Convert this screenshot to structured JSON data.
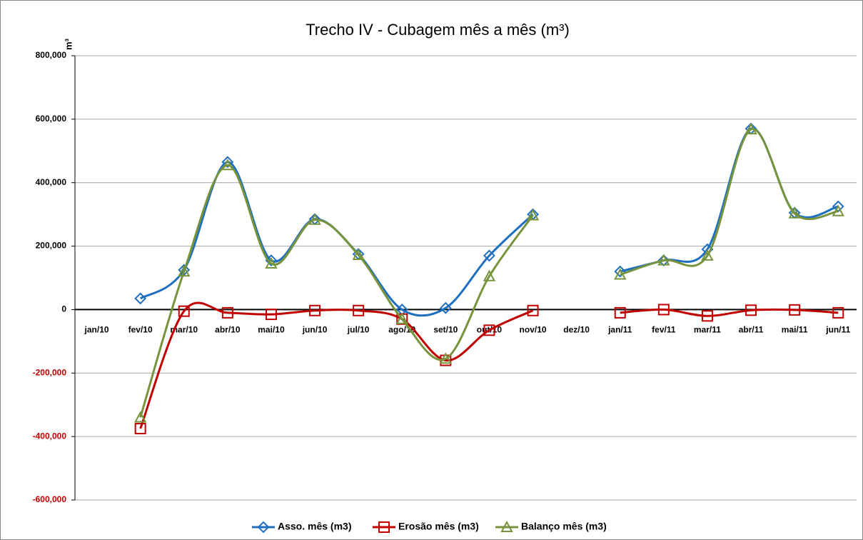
{
  "chart_data": {
    "type": "line",
    "title": "Trecho IV - Cubagem mês a mês (m³)",
    "y_label": "m³",
    "categories": [
      "jan/10",
      "fev/10",
      "mar/10",
      "abr/10",
      "mai/10",
      "jun/10",
      "jul/10",
      "ago/10",
      "set/10",
      "out/10",
      "nov/10",
      "dez/10",
      "jan/11",
      "fev/11",
      "mar/11",
      "abr/11",
      "mai/11",
      "jun/11"
    ],
    "series": [
      {
        "name": "Asso. mês (m3)",
        "color": "#1f6fc0",
        "marker": "diamond",
        "values": [
          null,
          35000,
          125000,
          465000,
          155000,
          285000,
          175000,
          0,
          5000,
          170000,
          300000,
          null,
          120000,
          155000,
          190000,
          570000,
          305000,
          325000
        ]
      },
      {
        "name": "Erosão mês (m3)",
        "color": "#c00000",
        "marker": "square",
        "values": [
          null,
          -375000,
          -5000,
          -10000,
          -15000,
          -3000,
          -3000,
          -30000,
          -160000,
          -65000,
          -3000,
          null,
          -10000,
          0,
          -20000,
          -2000,
          -1000,
          -10000
        ]
      },
      {
        "name": "Balanço mês (m3)",
        "color": "#77933c",
        "marker": "triangle",
        "values": [
          null,
          -340000,
          120000,
          455000,
          145000,
          283000,
          172000,
          -30000,
          -155000,
          105000,
          297000,
          null,
          110000,
          155000,
          170000,
          568000,
          303000,
          310000
        ]
      }
    ],
    "ylim": [
      -600000,
      800000
    ],
    "yticks": [
      {
        "value": -600000,
        "label": "-600,000"
      },
      {
        "value": -400000,
        "label": "-400,000"
      },
      {
        "value": -200000,
        "label": "-200,000"
      },
      0,
      {
        "value": 200000,
        "label": "200,000"
      },
      {
        "value": 400000,
        "label": "400,000"
      },
      {
        "value": 600000,
        "label": "600,000"
      },
      {
        "value": 800000,
        "label": "800,000"
      }
    ],
    "grid": true,
    "smooth": true,
    "legend": "bottom",
    "negative_tick_color": "#c00000"
  }
}
